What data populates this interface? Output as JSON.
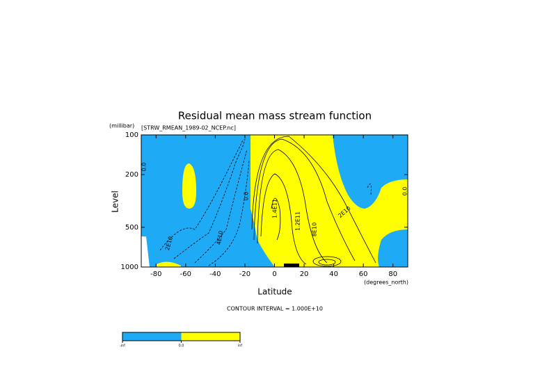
{
  "chart_data": {
    "type": "contour",
    "title": "Residual mean mass stream function",
    "dataset": "[STRW_RMEAN_1989-02_NCEP.nc]",
    "y_units": "(millibar)",
    "ylabel": "Level",
    "xlabel": "Latitude",
    "x_units": "(degrees_north)",
    "footer": "CONTOUR INTERVAL = 1.000E+10",
    "xlim": [
      -90,
      90
    ],
    "xticks": [
      -80,
      -60,
      -40,
      -20,
      0,
      20,
      40,
      60,
      80
    ],
    "ylim": [
      100,
      1000
    ],
    "yticks": [
      100,
      200,
      500,
      1000
    ],
    "log_y": true,
    "contour_labels": [
      "0.0",
      "2E10",
      "4E10",
      "0.0",
      "1.4E11",
      "1.2E11",
      "8E10",
      "2E10",
      "0.0"
    ],
    "colorbar": {
      "colors": [
        "#1eaaf5",
        "#ffff00"
      ],
      "labels": [
        "-inf",
        "0.0",
        "inf"
      ]
    }
  }
}
